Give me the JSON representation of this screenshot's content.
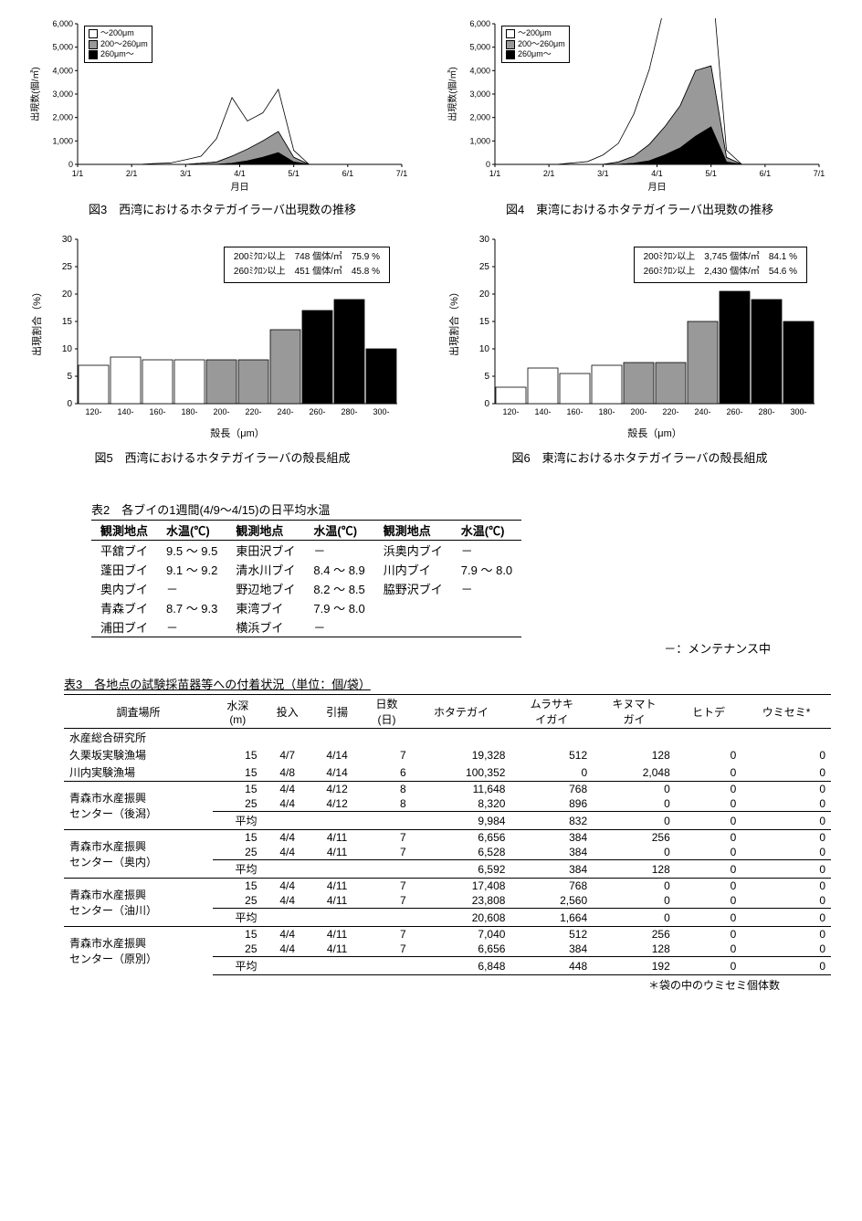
{
  "colors": {
    "white": "#ffffff",
    "gray": "#999999",
    "black": "#000000",
    "axis": "#000000",
    "tick": "#000000"
  },
  "fig3": {
    "type": "area-stacked",
    "title": "図3　西湾におけるホタテガイラーバ出現数の推移",
    "ylabel": "出現数(個/㎥)",
    "xlabel": "月日",
    "ylim": [
      0,
      6000
    ],
    "ytick_step": 1000,
    "x_ticks": [
      "1/1",
      "2/1",
      "3/1",
      "4/1",
      "5/1",
      "6/1",
      "7/1"
    ],
    "legend": [
      "～200μm",
      "200～260μm",
      "260μm～"
    ],
    "series": {
      "~200": [
        0,
        0,
        0,
        0,
        0,
        40,
        60,
        200,
        300,
        1000,
        2500,
        1200,
        1200,
        1800,
        300,
        0,
        0,
        0,
        0,
        0,
        0,
        0
      ],
      "200-260": [
        0,
        0,
        0,
        0,
        0,
        0,
        0,
        0,
        50,
        100,
        300,
        500,
        700,
        900,
        200,
        0,
        0,
        0,
        0,
        0,
        0,
        0
      ],
      "260~": [
        0,
        0,
        0,
        0,
        0,
        0,
        0,
        0,
        0,
        0,
        50,
        150,
        300,
        500,
        100,
        0,
        0,
        0,
        0,
        0,
        0,
        0
      ]
    }
  },
  "fig4": {
    "type": "area-stacked",
    "title": "図4　東湾におけるホタテガイラーバ出現数の推移",
    "ylabel": "出現数(個/㎥)",
    "xlabel": "月日",
    "ylim": [
      0,
      6000
    ],
    "ytick_step": 1000,
    "x_ticks": [
      "1/1",
      "2/1",
      "3/1",
      "4/1",
      "5/1",
      "6/1",
      "7/1"
    ],
    "legend": [
      "～200μm",
      "200～260μm",
      "260μm～"
    ],
    "series": {
      "~200": [
        0,
        0,
        0,
        0,
        0,
        60,
        120,
        400,
        800,
        1800,
        3200,
        5200,
        4000,
        5200,
        4200,
        300,
        0,
        0,
        0,
        0,
        0,
        0
      ],
      "200-260": [
        0,
        0,
        0,
        0,
        0,
        0,
        0,
        0,
        100,
        300,
        700,
        1200,
        1800,
        2800,
        2600,
        200,
        0,
        0,
        0,
        0,
        0,
        0
      ],
      "260~": [
        0,
        0,
        0,
        0,
        0,
        0,
        0,
        0,
        0,
        50,
        150,
        400,
        700,
        1200,
        1600,
        100,
        0,
        0,
        0,
        0,
        0,
        0
      ]
    }
  },
  "fig5": {
    "type": "bar",
    "title": "図5　西湾におけるホタテガイラーバの殻長組成",
    "ylabel": "出現割合（%）",
    "xlabel": "殻長（μm）",
    "ylim": [
      0,
      30
    ],
    "ytick_step": 5,
    "categories": [
      "120-",
      "140-",
      "160-",
      "180-",
      "200-",
      "220-",
      "240-",
      "260-",
      "280-",
      "300-"
    ],
    "values": [
      7,
      8.5,
      8,
      8,
      8,
      8,
      13.5,
      17,
      19,
      10
    ],
    "fills": [
      "white",
      "white",
      "white",
      "white",
      "gray",
      "gray",
      "gray",
      "black",
      "black",
      "black"
    ],
    "annot": [
      {
        "label": "200ﾐｸﾛﾝ以上",
        "count": "748 個体/㎥",
        "pct": "75.9 %"
      },
      {
        "label": "260ﾐｸﾛﾝ以上",
        "count": "451 個体/㎥",
        "pct": "45.8 %"
      }
    ]
  },
  "fig6": {
    "type": "bar",
    "title": "図6　東湾におけるホタテガイラーバの殻長組成",
    "ylabel": "出現割合（%）",
    "xlabel": "殻長（μm）",
    "ylim": [
      0,
      30
    ],
    "ytick_step": 5,
    "categories": [
      "120-",
      "140-",
      "160-",
      "180-",
      "200-",
      "220-",
      "240-",
      "260-",
      "280-",
      "300-"
    ],
    "values": [
      3,
      6.5,
      5.5,
      7,
      7.5,
      7.5,
      15,
      20.5,
      19,
      15
    ],
    "fills": [
      "white",
      "white",
      "white",
      "white",
      "gray",
      "gray",
      "gray",
      "black",
      "black",
      "black"
    ],
    "annot": [
      {
        "label": "200ﾐｸﾛﾝ以上",
        "count": "3,745 個体/㎥",
        "pct": "84.1 %"
      },
      {
        "label": "260ﾐｸﾛﾝ以上",
        "count": "2,430 個体/㎥",
        "pct": "54.6 %"
      }
    ]
  },
  "table2": {
    "title": "表2　各ブイの1週間(4/9～4/15)の日平均水温",
    "headers": [
      "観測地点",
      "水温(℃)",
      "観測地点",
      "水温(℃)",
      "観測地点",
      "水温(℃)"
    ],
    "rows": [
      [
        "平舘ブイ",
        "9.5 ～ 9.5",
        "東田沢ブイ",
        "－",
        "浜奥内ブイ",
        "－"
      ],
      [
        "蓬田ブイ",
        "9.1 ～ 9.2",
        "清水川ブイ",
        "8.4 ～ 8.9",
        "川内ブイ",
        "7.9 ～ 8.0"
      ],
      [
        "奥内ブイ",
        "－",
        "野辺地ブイ",
        "8.2 ～ 8.5",
        "脇野沢ブイ",
        "－"
      ],
      [
        "青森ブイ",
        "8.7 ～ 9.3",
        "東湾ブイ",
        "7.9 ～ 8.0",
        "",
        ""
      ],
      [
        "浦田ブイ",
        "－",
        "横浜ブイ",
        "－",
        "",
        ""
      ]
    ],
    "note": "－：メンテナンス中"
  },
  "table3": {
    "title": "表3　各地点の試験採苗器等への付着状況（単位：個/袋）",
    "headers": [
      "調査場所",
      "水深\n(m)",
      "投入",
      "引揚",
      "日数\n(日)",
      "ホタテガイ",
      "ムラサキ\nイガイ",
      "キヌマト\nガイ",
      "ヒトデ",
      "ウミセミ*"
    ],
    "rows": [
      {
        "loc": "水産総合研究所",
        "sub": false,
        "g": 0,
        "cells": [
          "",
          "",
          "",
          "",
          "",
          "",
          "",
          "",
          ""
        ]
      },
      {
        "loc": "久栗坂実験漁場",
        "sub": false,
        "g": 0,
        "cells": [
          "15",
          "4/7",
          "4/14",
          "7",
          "19,328",
          "512",
          "128",
          "0",
          "0"
        ]
      },
      {
        "loc": "川内実験漁場",
        "sub": false,
        "g": 0,
        "cells": [
          "15",
          "4/8",
          "4/14",
          "6",
          "100,352",
          "0",
          "2,048",
          "0",
          "0"
        ]
      },
      {
        "loc": "青森市水産振興\nセンター（後潟）",
        "sub": true,
        "g": 1,
        "cells": [
          [
            "15",
            "4/4",
            "4/12",
            "8",
            "11,648",
            "768",
            "0",
            "0",
            "0"
          ],
          [
            "25",
            "4/4",
            "4/12",
            "8",
            "8,320",
            "896",
            "0",
            "0",
            "0"
          ],
          [
            "平均",
            "",
            "",
            "",
            "9,984",
            "832",
            "0",
            "0",
            "0"
          ]
        ]
      },
      {
        "loc": "青森市水産振興\nセンター（奥内）",
        "sub": true,
        "g": 2,
        "cells": [
          [
            "15",
            "4/4",
            "4/11",
            "7",
            "6,656",
            "384",
            "256",
            "0",
            "0"
          ],
          [
            "25",
            "4/4",
            "4/11",
            "7",
            "6,528",
            "384",
            "0",
            "0",
            "0"
          ],
          [
            "平均",
            "",
            "",
            "",
            "6,592",
            "384",
            "128",
            "0",
            "0"
          ]
        ]
      },
      {
        "loc": "青森市水産振興\nセンター（油川）",
        "sub": true,
        "g": 3,
        "cells": [
          [
            "15",
            "4/4",
            "4/11",
            "7",
            "17,408",
            "768",
            "0",
            "0",
            "0"
          ],
          [
            "25",
            "4/4",
            "4/11",
            "7",
            "23,808",
            "2,560",
            "0",
            "0",
            "0"
          ],
          [
            "平均",
            "",
            "",
            "",
            "20,608",
            "1,664",
            "0",
            "0",
            "0"
          ]
        ]
      },
      {
        "loc": "青森市水産振興\nセンター（原別）",
        "sub": true,
        "g": 4,
        "cells": [
          [
            "15",
            "4/4",
            "4/11",
            "7",
            "7,040",
            "512",
            "256",
            "0",
            "0"
          ],
          [
            "25",
            "4/4",
            "4/11",
            "7",
            "6,656",
            "384",
            "128",
            "0",
            "0"
          ],
          [
            "平均",
            "",
            "",
            "",
            "6,848",
            "448",
            "192",
            "0",
            "0"
          ]
        ]
      }
    ],
    "note": "＊袋の中のウミセミ個体数"
  }
}
